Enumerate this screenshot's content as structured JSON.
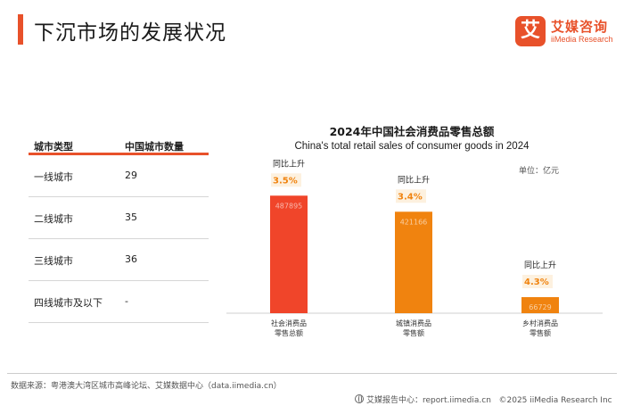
{
  "page": {
    "title": "下沉市场的发展状况",
    "logo": {
      "mark": "艾",
      "cn": "艾媒咨询",
      "en": "iiMedia Research"
    }
  },
  "city_table": {
    "headers": [
      "城市类型",
      "中国城市数量"
    ],
    "rows": [
      {
        "type": "一线城市",
        "count": "29"
      },
      {
        "type": "二线城市",
        "count": "35"
      },
      {
        "type": "三线城市",
        "count": "36"
      },
      {
        "type": "四线城市及以下",
        "count": "-"
      }
    ]
  },
  "chart_data": {
    "type": "bar",
    "title": "2024年中国社会消费品零售总额",
    "subtitle": "China's total retail sales of consumer goods in 2024",
    "unit": "单位：亿元",
    "categories": [
      {
        "line1": "社会消费品",
        "line2": "零售总额"
      },
      {
        "line1": "城镇消费品",
        "line2": "零售额"
      },
      {
        "line1": "乡村消费品",
        "line2": "零售额"
      }
    ],
    "values": [
      487895,
      421166,
      66729
    ],
    "value_labels": [
      "487895",
      "421166",
      "66729"
    ],
    "growth_label": "同比上升",
    "growth": [
      "3.5%",
      "3.4%",
      "4.3%"
    ],
    "colors": [
      "#f0452a",
      "#f0830f",
      "#f0830f"
    ],
    "ylim": [
      0,
      500000
    ],
    "grid": false
  },
  "footer": {
    "source": "数据来源：粤港澳大湾区城市高峰论坛、艾媒数据中心（data.iimedia.cn）",
    "report_center": "艾媒报告中心：report.iimedia.cn",
    "copyright": "©2025 iiMedia Research Inc"
  }
}
